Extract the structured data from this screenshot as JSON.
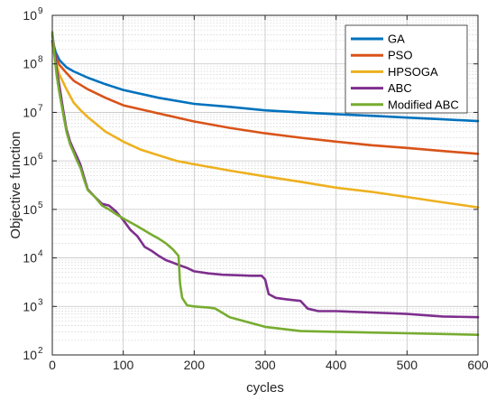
{
  "chart_data": {
    "type": "line",
    "xlabel": "cycles",
    "ylabel": "Objective function",
    "xlim": [
      0,
      600
    ],
    "ylim": [
      100,
      1000000000
    ],
    "yscale": "log",
    "x_ticks": [
      0,
      100,
      200,
      300,
      400,
      500,
      600
    ],
    "y_tick_exponents": [
      2,
      3,
      4,
      5,
      6,
      7,
      8,
      9
    ],
    "y_tick_base": "10",
    "grid": true,
    "legend_position": "top-right",
    "series": [
      {
        "name": "GA",
        "color": "#0072BD",
        "x": [
          0,
          5,
          10,
          20,
          30,
          50,
          75,
          100,
          150,
          200,
          250,
          300,
          350,
          400,
          450,
          500,
          550,
          600
        ],
        "y": [
          300000000,
          170000000,
          120000000,
          85000000,
          70000000,
          52000000,
          38000000,
          29000000,
          20000000,
          15000000,
          13000000,
          11000000,
          10000000,
          9200000,
          8500000,
          7800000,
          7200000,
          6600000
        ]
      },
      {
        "name": "PSO",
        "color": "#D95319",
        "x": [
          0,
          5,
          10,
          20,
          30,
          50,
          75,
          100,
          150,
          200,
          250,
          300,
          350,
          400,
          450,
          500,
          550,
          600
        ],
        "y": [
          280000000,
          140000000,
          95000000,
          65000000,
          45000000,
          30000000,
          20000000,
          14000000,
          9500000,
          6500000,
          4800000,
          3700000,
          3000000,
          2500000,
          2100000,
          1850000,
          1600000,
          1400000
        ]
      },
      {
        "name": "HPSOGA",
        "color": "#EDB120",
        "x": [
          0,
          5,
          10,
          20,
          30,
          40,
          50,
          75,
          100,
          125,
          150,
          175,
          200,
          250,
          300,
          350,
          400,
          450,
          500,
          550,
          600
        ],
        "y": [
          250000000,
          110000000,
          60000000,
          30000000,
          16000000,
          11000000,
          8000000,
          4000000,
          2500000,
          1700000,
          1300000,
          1000000,
          850000,
          630000,
          480000,
          370000,
          280000,
          230000,
          180000,
          140000,
          110000
        ]
      },
      {
        "name": "ABC",
        "color": "#7E2F8E",
        "x": [
          0,
          3,
          6,
          10,
          15,
          20,
          25,
          30,
          35,
          40,
          45,
          50,
          60,
          70,
          80,
          90,
          100,
          110,
          120,
          130,
          140,
          150,
          160,
          170,
          180,
          190,
          200,
          220,
          240,
          260,
          280,
          295,
          300,
          305,
          315,
          330,
          350,
          360,
          375,
          400,
          450,
          500,
          550,
          600
        ],
        "y": [
          400000000,
          200000000,
          80000000,
          35000000,
          12000000,
          4500000,
          2500000,
          1700000,
          1200000,
          800000,
          450000,
          260000,
          180000,
          130000,
          120000,
          90000,
          60000,
          38000,
          28000,
          17000,
          14000,
          11000,
          9000,
          8000,
          7000,
          6200,
          5300,
          4800,
          4500,
          4400,
          4300,
          4300,
          3600,
          1800,
          1500,
          1400,
          1300,
          900,
          800,
          800,
          750,
          700,
          620,
          600
        ]
      },
      {
        "name": "Modified ABC",
        "color": "#77AC30",
        "x": [
          0,
          3,
          6,
          10,
          15,
          20,
          25,
          30,
          35,
          40,
          45,
          50,
          60,
          70,
          80,
          90,
          100,
          120,
          140,
          150,
          160,
          170,
          178,
          180,
          183,
          190,
          200,
          220,
          230,
          250,
          270,
          300,
          350,
          400,
          450,
          500,
          550,
          600
        ],
        "y": [
          450000000,
          150000000,
          60000000,
          25000000,
          10000000,
          4000000,
          2200000,
          1500000,
          1000000,
          700000,
          400000,
          250000,
          180000,
          120000,
          100000,
          80000,
          65000,
          45000,
          30000,
          25000,
          20000,
          15000,
          11000,
          3000,
          1500,
          1050,
          1000,
          950,
          900,
          600,
          500,
          380,
          310,
          300,
          290,
          280,
          270,
          260
        ]
      }
    ]
  }
}
